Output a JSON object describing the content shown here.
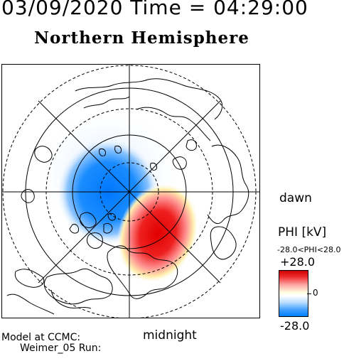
{
  "header": {
    "timestamp": "03/09/2020 Time = 04:29:00",
    "hemisphere_title": "Northern Hemisphere"
  },
  "map": {
    "dawn_label": "dawn",
    "midnight_label": "midnight",
    "colors": {
      "positive": "#e00000",
      "negative": "#0080ff",
      "neutral": "#ffffff",
      "outline": "#000000"
    }
  },
  "colorbar": {
    "title": "PHI [kV]",
    "range_text": "-28.0<PHI<28.0",
    "max_label": "+28.0",
    "mid_label": "0",
    "min_label": "-28.0",
    "max_value": 28.0,
    "min_value": -28.0
  },
  "footer": {
    "model_label": "Model at CCMC:",
    "run_label": "Weimer_05 Run:"
  }
}
